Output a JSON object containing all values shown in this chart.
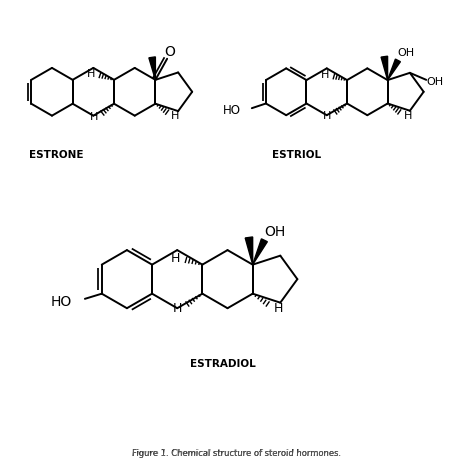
{
  "background_color": "#ffffff",
  "line_color": "#000000",
  "line_width": 1.4,
  "estrone_label": "ESTRONE",
  "estriol_label": "ESTRIOL",
  "estradiol_label": "ESTRADIOL",
  "caption": "Figure 1. Chemical structure of steroid hormones."
}
